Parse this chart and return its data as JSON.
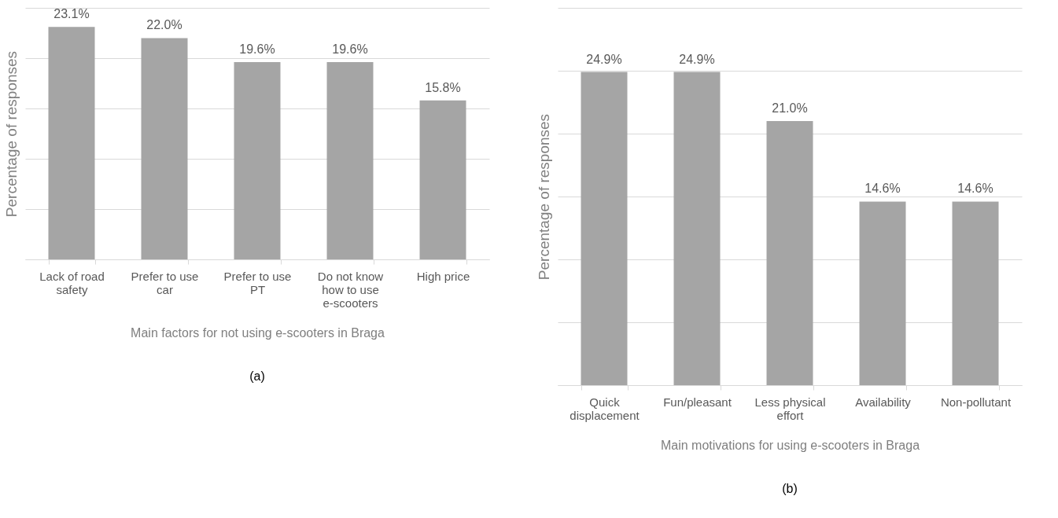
{
  "chart_data": [
    {
      "type": "bar",
      "xlabel": "Main factors for not using e-scooters in Braga",
      "ylabel": "Percentage of responses",
      "categories": [
        "Lack of road safety",
        "Prefer to use car",
        "Prefer to use PT",
        "Do not know how to use e-scooters",
        "High price"
      ],
      "values": [
        23.1,
        22.0,
        19.6,
        19.6,
        15.8
      ],
      "value_labels": [
        "23.1%",
        "22.0%",
        "19.6%",
        "19.6%",
        "15.8%"
      ],
      "color": "#a5a5a5",
      "ylim": [
        0,
        25
      ],
      "yticks": [
        {
          "value": 0,
          "label": null
        },
        {
          "value": 5,
          "label": null
        },
        {
          "value": 10,
          "label": null
        },
        {
          "value": 15,
          "label": null
        },
        {
          "value": 20,
          "label": null
        },
        {
          "value": 25,
          "label": null
        }
      ],
      "grid": "y",
      "tick_labels": "x",
      "annotations": [
        "(a)"
      ]
    },
    {
      "type": "bar",
      "xlabel": "Main motivations for using e-scooters in Braga",
      "ylabel": "Percentage of responses",
      "categories": [
        "Quick displacement",
        "Fun/pleasant",
        "Less physical effort",
        "Availability",
        "Non-pollutant"
      ],
      "values": [
        24.9,
        24.9,
        21.0,
        14.6,
        14.6
      ],
      "value_labels": [
        "24.9%",
        "24.9%",
        "21.0%",
        "14.6%",
        "14.6%"
      ],
      "color": "#a5a5a5",
      "ylim": [
        0,
        30
      ],
      "yticks": [
        {
          "value": 0,
          "label": null
        },
        {
          "value": 5,
          "label": null
        },
        {
          "value": 10,
          "label": null
        },
        {
          "value": 15,
          "label": null
        },
        {
          "value": 20,
          "label": null
        },
        {
          "value": 25,
          "label": null
        },
        {
          "value": 30,
          "label": null
        }
      ],
      "grid": "y",
      "tick_labels": "x",
      "annotations": [
        "(b)"
      ]
    }
  ]
}
